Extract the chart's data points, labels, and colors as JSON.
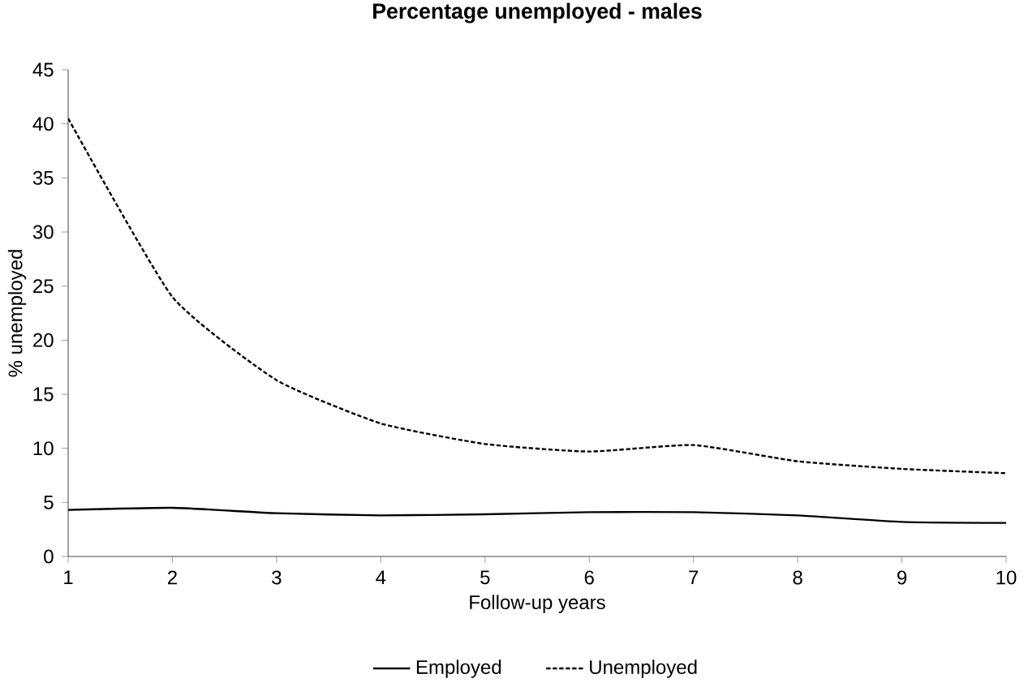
{
  "chart_data": {
    "type": "line",
    "title": "Percentage unemployed  - males",
    "xlabel": "Follow-up years",
    "ylabel": "% unemployed",
    "x": [
      1,
      2,
      3,
      4,
      5,
      6,
      7,
      8,
      9,
      10
    ],
    "series": [
      {
        "name": "Employed",
        "color": "#000000",
        "line_style": "solid",
        "values": [
          4.3,
          4.5,
          4.0,
          3.8,
          3.9,
          4.1,
          4.1,
          3.8,
          3.2,
          3.1
        ]
      },
      {
        "name": "Unemployed",
        "color": "#000000",
        "line_style": "dashed",
        "values": [
          40.5,
          24.0,
          16.3,
          12.3,
          10.4,
          9.7,
          10.3,
          8.8,
          8.1,
          7.7
        ]
      }
    ],
    "xlim": [
      1,
      10
    ],
    "ylim": [
      0,
      45
    ],
    "xticks": [
      1,
      2,
      3,
      4,
      5,
      6,
      7,
      8,
      9,
      10
    ],
    "yticks": [
      0,
      5,
      10,
      15,
      20,
      25,
      30,
      35,
      40,
      45
    ],
    "grid": false,
    "legend": "bottom",
    "marker": "none"
  }
}
